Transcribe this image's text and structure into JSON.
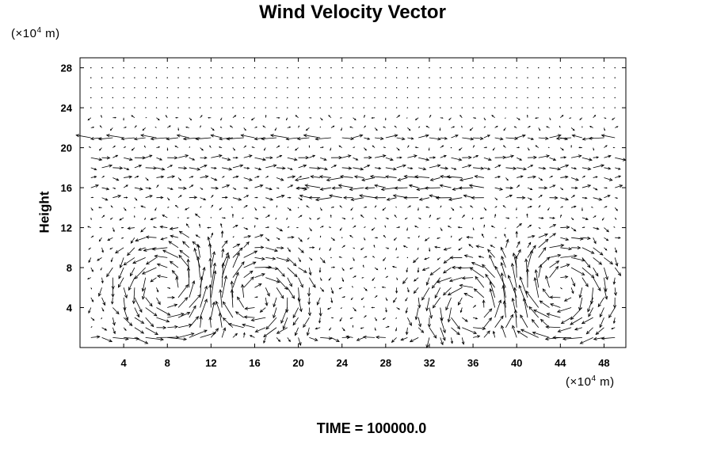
{
  "chart_data": {
    "type": "vector-field",
    "title": "Wind Velocity Vector",
    "ylabel": "Height",
    "xlabel": "",
    "y_unit": {
      "prefix": "(×10",
      "exp": "4",
      "suffix": " m)"
    },
    "x_unit": {
      "prefix": "(×10",
      "exp": "4",
      "suffix": " m)"
    },
    "xlim": [
      0,
      50
    ],
    "ylim": [
      0,
      29
    ],
    "x_ticks": [
      4,
      8,
      12,
      16,
      20,
      24,
      28,
      32,
      36,
      40,
      44,
      48
    ],
    "y_ticks": [
      4,
      8,
      12,
      16,
      20,
      24,
      28
    ],
    "grid": {
      "dx": 1,
      "dy": 1
    },
    "footer": "TIME = 100000.0"
  }
}
